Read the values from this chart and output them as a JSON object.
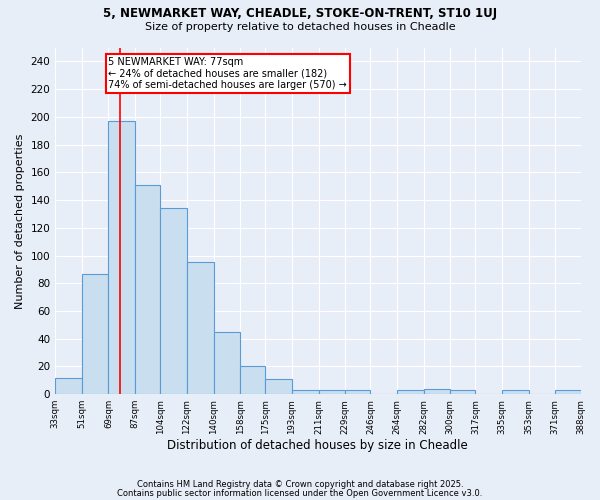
{
  "title1": "5, NEWMARKET WAY, CHEADLE, STOKE-ON-TRENT, ST10 1UJ",
  "title2": "Size of property relative to detached houses in Cheadle",
  "xlabel": "Distribution of detached houses by size in Cheadle",
  "ylabel": "Number of detached properties",
  "bin_edges": [
    33,
    51,
    69,
    87,
    104,
    122,
    140,
    158,
    175,
    193,
    211,
    229,
    246,
    264,
    282,
    300,
    317,
    335,
    353,
    371,
    388
  ],
  "bar_heights": [
    12,
    87,
    197,
    151,
    134,
    95,
    45,
    20,
    11,
    3,
    3,
    3,
    0,
    3,
    4,
    3,
    0,
    3,
    0,
    3
  ],
  "bar_color": "#c9dff0",
  "bar_edge_color": "#5b9bd5",
  "bg_color": "#e8eef8",
  "grid_color": "#ffffff",
  "vline_x": 77,
  "vline_color": "red",
  "annotation_text": "5 NEWMARKET WAY: 77sqm\n← 24% of detached houses are smaller (182)\n74% of semi-detached houses are larger (570) →",
  "annotation_box_color": "white",
  "annotation_edge_color": "red",
  "ylim": [
    0,
    250
  ],
  "yticks": [
    0,
    20,
    40,
    60,
    80,
    100,
    120,
    140,
    160,
    180,
    200,
    220,
    240
  ],
  "footer1": "Contains HM Land Registry data © Crown copyright and database right 2025.",
  "footer2": "Contains public sector information licensed under the Open Government Licence v3.0."
}
